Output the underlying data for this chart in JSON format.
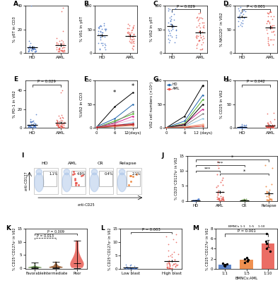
{
  "colors": {
    "HD": "#4472c4",
    "AML": "#e8534a",
    "CR": "#548235",
    "Relapse": "#ed7d31",
    "Favorable": "#548235",
    "Intermediate": "#8b4513",
    "Poor": "#e8534a"
  },
  "panel_F_HD_lines": [
    [
      2,
      45,
      75
    ],
    [
      3,
      20,
      50
    ],
    [
      1,
      15,
      30
    ],
    [
      2,
      10,
      25
    ],
    [
      1,
      8,
      18
    ],
    [
      2,
      12,
      35
    ],
    [
      3,
      5,
      12
    ],
    [
      1,
      3,
      8
    ]
  ],
  "panel_F_AML_lines": [
    [
      1,
      5,
      8
    ],
    [
      2,
      3,
      5
    ],
    [
      1,
      4,
      6
    ],
    [
      2,
      6,
      9
    ]
  ],
  "panel_F_HD_colors": [
    "black",
    "#2166ac",
    "#4dac26",
    "#d01c8b",
    "#f1b6da",
    "gray",
    "#92c5de",
    "black"
  ],
  "panel_F_AML_colors": [
    "#e8534a",
    "#f4a582",
    "#d6604d",
    "#b2182b"
  ],
  "panel_G_HD_lines": [
    [
      1,
      25,
      90
    ],
    [
      1,
      15,
      70
    ],
    [
      1,
      10,
      60
    ],
    [
      1,
      8,
      40
    ],
    [
      1,
      5,
      30
    ],
    [
      1,
      3,
      20
    ],
    [
      1,
      7,
      50
    ]
  ],
  "panel_G_AML_lines": [
    [
      1,
      2,
      5
    ],
    [
      1,
      3,
      8
    ],
    [
      1,
      1,
      4
    ]
  ],
  "panel_G_HD_colors": [
    "black",
    "#2166ac",
    "#4dac26",
    "#d01c8b",
    "gray",
    "#92c5de",
    "black"
  ],
  "panel_G_AML_colors": [
    "#e8534a",
    "#f4a582",
    "#d6604d"
  ],
  "panel_M_means": [
    0.8,
    1.8,
    5.0
  ],
  "panel_M_sems": [
    0.15,
    0.25,
    0.7
  ],
  "panel_M_indiv": [
    [
      0.5,
      0.7,
      0.8,
      1.0,
      1.1
    ],
    [
      1.3,
      1.5,
      1.8,
      2.0,
      2.2
    ],
    [
      3.5,
      4.0,
      5.0,
      5.5,
      7.0
    ]
  ],
  "panel_M_colors": [
    "#4472c4",
    "#ed7d31",
    "#e8534a"
  ]
}
